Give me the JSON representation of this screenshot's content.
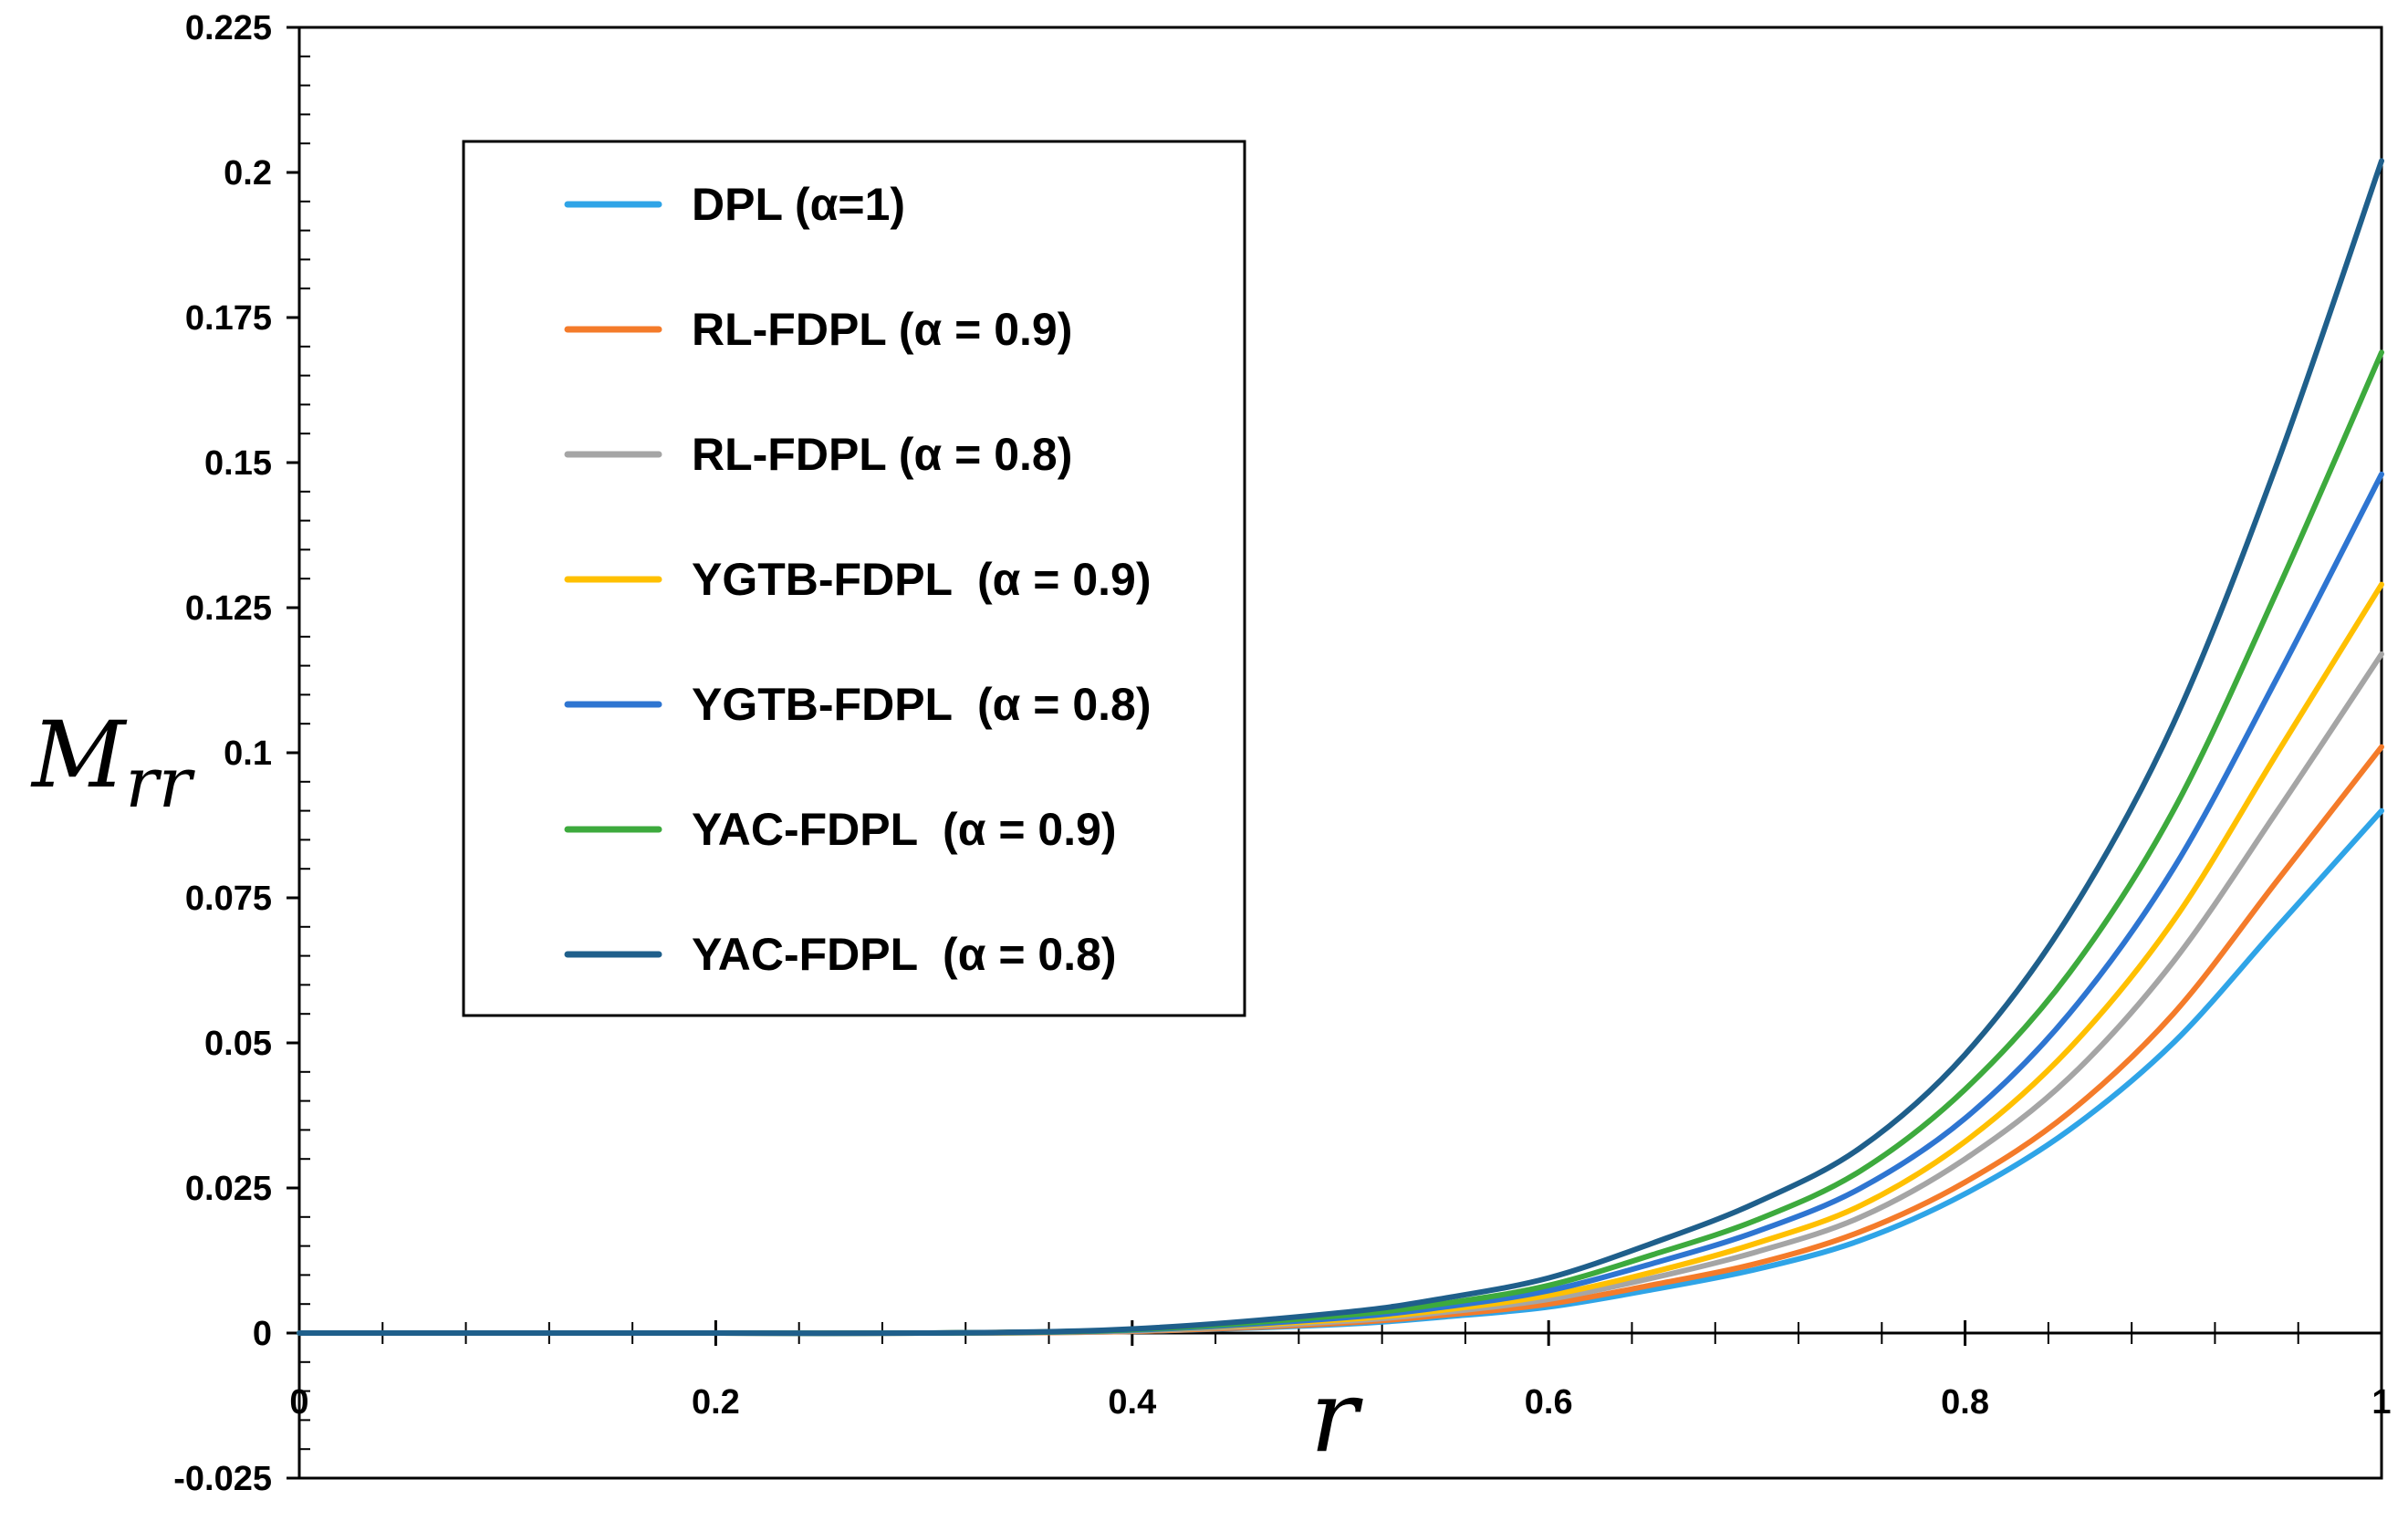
{
  "chart_data": {
    "type": "line",
    "title": "",
    "xlabel": "r",
    "ylabel": "M",
    "ylabel_sub": "rr",
    "xlim": [
      0,
      1
    ],
    "ylim": [
      -0.025,
      0.225
    ],
    "x_ticks": [
      0,
      0.2,
      0.4,
      0.6,
      0.8,
      1
    ],
    "x_tick_labels": [
      "0",
      "0.2",
      "0.4",
      "0.6",
      "0.8",
      "1"
    ],
    "y_ticks": [
      -0.025,
      0,
      0.025,
      0.05,
      0.075,
      0.1,
      0.125,
      0.15,
      0.175,
      0.2,
      0.225
    ],
    "y_tick_labels": [
      "-0.025",
      "0",
      "0.025",
      "0.05",
      "0.075",
      "0.1",
      "0.125",
      "0.15",
      "0.175",
      "0.2",
      "0.225"
    ],
    "grid": false,
    "legend_position": "top-left",
    "x": [
      0,
      0.1,
      0.2,
      0.3,
      0.4,
      0.5,
      0.55,
      0.6,
      0.65,
      0.7,
      0.75,
      0.8,
      0.85,
      0.9,
      0.95,
      1.0
    ],
    "series": [
      {
        "name": "DPL (α=1)",
        "color": "#2FA4E7",
        "values": [
          0,
          0,
          0,
          0,
          0.0003,
          0.0015,
          0.0028,
          0.0045,
          0.0075,
          0.011,
          0.016,
          0.024,
          0.035,
          0.05,
          0.07,
          0.09
        ]
      },
      {
        "name": "RL-FDPL (α = 0.9)",
        "color": "#F47B2A",
        "values": [
          0,
          0,
          0,
          0,
          0.0003,
          0.0017,
          0.0031,
          0.005,
          0.0083,
          0.012,
          0.0175,
          0.026,
          0.038,
          0.055,
          0.078,
          0.101
        ]
      },
      {
        "name": "RL-FDPL (α = 0.8)",
        "color": "#A5A5A5",
        "values": [
          0,
          0,
          0,
          0,
          0.0004,
          0.002,
          0.0036,
          0.0058,
          0.0095,
          0.014,
          0.02,
          0.03,
          0.044,
          0.064,
          0.09,
          0.117
        ]
      },
      {
        "name": "YGTB-FDPL  (α = 0.9)",
        "color": "#FFC000",
        "values": [
          0,
          0,
          0,
          0,
          0.0005,
          0.0023,
          0.004,
          0.0065,
          0.0105,
          0.0155,
          0.022,
          0.033,
          0.049,
          0.071,
          0.1,
          0.129
        ]
      },
      {
        "name": "YGTB-FDPL  (α = 0.8)",
        "color": "#2E75D1",
        "values": [
          0,
          0,
          0,
          0,
          0.0005,
          0.0026,
          0.0045,
          0.0073,
          0.012,
          0.0175,
          0.025,
          0.037,
          0.055,
          0.08,
          0.113,
          0.148
        ]
      },
      {
        "name": "YAC-FDPL  (α = 0.9)",
        "color": "#3DAA3D",
        "values": [
          0,
          0,
          0,
          0,
          0.0006,
          0.003,
          0.0051,
          0.0082,
          0.0135,
          0.0195,
          0.028,
          0.042,
          0.062,
          0.09,
          0.128,
          0.169
        ]
      },
      {
        "name": "YAC-FDPL  (α = 0.8)",
        "color": "#1F5F8B",
        "values": [
          0,
          0,
          0,
          0,
          0.0007,
          0.0035,
          0.006,
          0.0095,
          0.0155,
          0.0225,
          0.032,
          0.048,
          0.072,
          0.105,
          0.15,
          0.202
        ]
      }
    ]
  }
}
